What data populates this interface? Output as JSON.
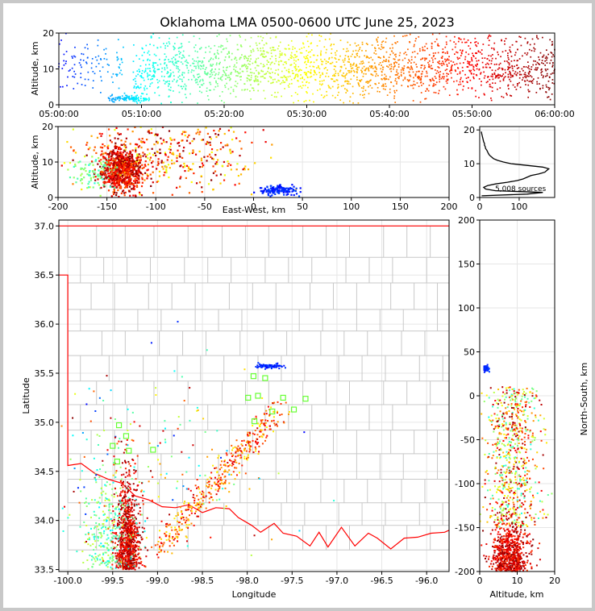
{
  "figure": {
    "title": "Oklahoma LMA 0500-0600 UTC June 25, 2023",
    "bg": "#ffffff",
    "border": "#c8c8c8"
  },
  "chart_data": [
    {
      "name": "altitude-vs-time",
      "type": "scatter",
      "xlabel": "",
      "ylabel": "Altitude, km",
      "x_ticks": [
        "05:00:00",
        "05:10:00",
        "05:20:00",
        "05:30:00",
        "05:40:00",
        "05:50:00",
        "06:00:00"
      ],
      "xlim_minutes": [
        0,
        60
      ],
      "ylim": [
        0,
        20
      ],
      "y_ticks": [
        0,
        10,
        20
      ],
      "color_by": "time",
      "colormap": [
        "#0000ff",
        "#00ffff",
        "#80ff80",
        "#ffff00",
        "#ff8000",
        "#ff0000",
        "#800000"
      ],
      "clusters": [
        {
          "t": [
            0,
            8
          ],
          "alt_mean": 11,
          "alt_sd": 4,
          "n": 110
        },
        {
          "t": [
            6,
            9.5
          ],
          "alt_mean": 1.8,
          "alt_sd": 0.4,
          "n": 80
        },
        {
          "t": [
            9,
            11
          ],
          "alt_mean": 1.5,
          "alt_sd": 0.4,
          "n": 30
        },
        {
          "t": [
            9,
            60
          ],
          "alt_mean": 9,
          "alt_sd": 3.5,
          "n": 1700
        },
        {
          "t": [
            10,
            60
          ],
          "alt_mean": 16,
          "alt_sd": 3,
          "n": 420
        }
      ]
    },
    {
      "name": "altitude-vs-east-west",
      "type": "scatter",
      "xlabel": "East-West, km",
      "ylabel": "Altitude, km",
      "xlim": [
        -200,
        200
      ],
      "x_ticks": [
        -200,
        -150,
        -100,
        -50,
        0,
        50,
        100,
        150,
        200
      ],
      "ylim": [
        0,
        20
      ],
      "y_ticks": [
        0,
        10,
        20
      ]
    },
    {
      "name": "altitude-histogram",
      "type": "line",
      "xlim": [
        0,
        190
      ],
      "x_ticks": [
        0,
        100
      ],
      "ylim": [
        0,
        21
      ],
      "y_ticks": [
        0,
        10,
        20
      ],
      "annotation": "5,008 sources",
      "alt": [
        0.5,
        1,
        1.5,
        2,
        2.5,
        3,
        3.5,
        4,
        4.5,
        5,
        5.5,
        6,
        6.5,
        7,
        7.5,
        8,
        8.5,
        9,
        9.5,
        10,
        10.5,
        11,
        11.5,
        12,
        12.5,
        13,
        13.5,
        14,
        14.5,
        15,
        15.5,
        16,
        16.5,
        17,
        17.5,
        18,
        18.5,
        19,
        19.5
      ],
      "count": [
        5,
        120,
        160,
        40,
        15,
        10,
        20,
        40,
        70,
        95,
        110,
        120,
        130,
        150,
        165,
        170,
        175,
        160,
        120,
        80,
        60,
        45,
        35,
        30,
        25,
        22,
        20,
        18,
        15,
        14,
        12,
        12,
        10,
        9,
        8,
        7,
        6,
        5,
        4
      ]
    },
    {
      "name": "plan-view-map",
      "type": "scatter",
      "xlabel": "Longitude",
      "ylabel": "Latitude",
      "xlim": [
        -100.1,
        -95.75
      ],
      "x_ticks": [
        "-100.0",
        "-99.5",
        "-99.0",
        "-98.5",
        "-98.0",
        "-97.5",
        "-97.0",
        "-96.5",
        "-96.0"
      ],
      "ylim": [
        33.48,
        37.06
      ],
      "y_ticks": [
        "33.5",
        "34.0",
        "34.5",
        "35.0",
        "35.5",
        "36.0",
        "36.5",
        "37.0"
      ],
      "state_border_color": "#ff0000",
      "county_color": "#c8c8c8",
      "stations": [
        [
          -99.43,
          34.97
        ],
        [
          -99.35,
          34.86
        ],
        [
          -99.32,
          34.71
        ],
        [
          -99.5,
          34.76
        ],
        [
          -99.45,
          34.6
        ],
        [
          -99.05,
          34.72
        ],
        [
          -97.93,
          35.47
        ],
        [
          -97.8,
          35.45
        ],
        [
          -97.88,
          35.27
        ],
        [
          -97.99,
          35.25
        ],
        [
          -97.6,
          35.25
        ],
        [
          -97.35,
          35.24
        ],
        [
          -97.48,
          35.13
        ],
        [
          -97.72,
          35.11
        ],
        [
          -97.92,
          35.01
        ]
      ]
    },
    {
      "name": "north-south-vs-altitude",
      "type": "scatter",
      "xlabel": "Altitude, km",
      "ylabel": "North-South, km",
      "xlim": [
        0,
        20
      ],
      "x_ticks": [
        0,
        10,
        20
      ],
      "ylim": [
        -200,
        200
      ],
      "y_ticks": [
        -200,
        -150,
        -100,
        -50,
        0,
        50,
        100,
        150,
        200
      ]
    }
  ]
}
